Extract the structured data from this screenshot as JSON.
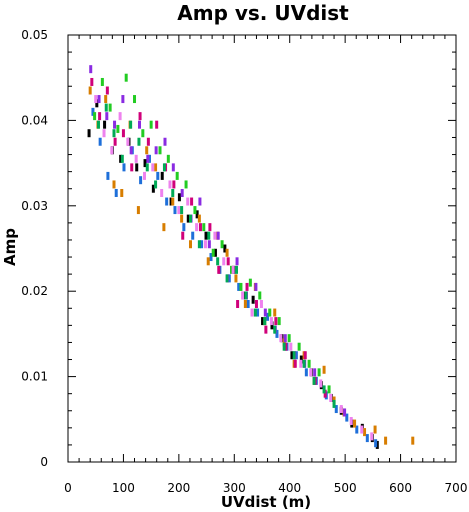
{
  "chart_data": {
    "type": "scatter",
    "title": "Amp vs. UVdist",
    "xlabel": "UVdist (m)",
    "ylabel": "Amp",
    "xlim": [
      0,
      700
    ],
    "ylim": [
      0,
      0.05
    ],
    "x_ticks": [
      "0",
      "100",
      "200",
      "300",
      "400",
      "500",
      "600",
      "700"
    ],
    "y_ticks": [
      "0",
      "0.01",
      "0.02",
      "0.03",
      "0.04",
      "0.05"
    ],
    "grid": false,
    "legend": "none",
    "marker": "small vertical bar",
    "colors": [
      "#000000",
      "#1e6fd9",
      "#d77d00",
      "#22cc22",
      "#d0007a",
      "#8a2be2",
      "#ee82ee",
      "#00aa55",
      "#ff3333",
      "#ffcc00"
    ],
    "series": [
      {
        "color": "#000000",
        "x": [
          38,
          52,
          66,
          80,
          95,
          110,
          124,
          139,
          154,
          170,
          186,
          201,
          217,
          233,
          249,
          266,
          283,
          299,
          316,
          334,
          351,
          368,
          386,
          404,
          421,
          439,
          457,
          475,
          493,
          512,
          531,
          549,
          558
        ],
        "y": [
          0.0385,
          0.042,
          0.0395,
          0.0365,
          0.0355,
          0.0375,
          0.0345,
          0.035,
          0.032,
          0.0335,
          0.0305,
          0.031,
          0.0285,
          0.029,
          0.0265,
          0.0245,
          0.025,
          0.0225,
          0.0195,
          0.019,
          0.0165,
          0.016,
          0.0145,
          0.0125,
          0.012,
          0.0105,
          0.009,
          0.0075,
          0.006,
          0.0045,
          0.004,
          0.0028,
          0.002
        ]
      },
      {
        "color": "#1e6fd9",
        "x": [
          45,
          58,
          72,
          87,
          101,
          116,
          131,
          147,
          162,
          178,
          193,
          209,
          225,
          241,
          258,
          274,
          291,
          308,
          325,
          342,
          360,
          377,
          395,
          412,
          430,
          448,
          466,
          484,
          503,
          521,
          540,
          555
        ],
        "y": [
          0.041,
          0.0375,
          0.0335,
          0.0315,
          0.0345,
          0.0365,
          0.033,
          0.0355,
          0.0335,
          0.0305,
          0.0295,
          0.0275,
          0.0265,
          0.0255,
          0.024,
          0.0225,
          0.0215,
          0.0205,
          0.0185,
          0.0175,
          0.017,
          0.015,
          0.0135,
          0.0125,
          0.0105,
          0.0095,
          0.0078,
          0.0062,
          0.0052,
          0.0038,
          0.0028,
          0.0022
        ]
      },
      {
        "color": "#d77d00",
        "x": [
          40,
          54,
          68,
          83,
          97,
          112,
          127,
          142,
          158,
          173,
          189,
          205,
          221,
          237,
          253,
          270,
          287,
          303,
          320,
          338,
          355,
          373,
          390,
          408,
          426,
          444,
          462,
          480,
          498,
          517,
          535,
          554,
          573,
          622
        ],
        "y": [
          0.0435,
          0.0395,
          0.0425,
          0.0325,
          0.0315,
          0.0395,
          0.0295,
          0.0365,
          0.0345,
          0.0275,
          0.0305,
          0.0285,
          0.0255,
          0.0285,
          0.0235,
          0.0265,
          0.0245,
          0.0215,
          0.0185,
          0.0205,
          0.0165,
          0.0175,
          0.014,
          0.0115,
          0.0125,
          0.0095,
          0.0108,
          0.0072,
          0.0058,
          0.0045,
          0.0035,
          0.0038,
          0.0025,
          0.0025
        ]
      },
      {
        "color": "#22cc22",
        "x": [
          48,
          62,
          76,
          90,
          105,
          120,
          135,
          150,
          166,
          181,
          197,
          213,
          229,
          245,
          262,
          278,
          295,
          312,
          329,
          346,
          364,
          381,
          399,
          417,
          435,
          453,
          471
        ],
        "y": [
          0.0405,
          0.0445,
          0.0415,
          0.039,
          0.045,
          0.0425,
          0.0385,
          0.0395,
          0.0365,
          0.0355,
          0.0335,
          0.0325,
          0.0295,
          0.0275,
          0.0245,
          0.0255,
          0.0225,
          0.0205,
          0.021,
          0.0195,
          0.0175,
          0.0165,
          0.0145,
          0.0135,
          0.0115,
          0.0105,
          0.0085
        ]
      },
      {
        "color": "#d0007a",
        "x": [
          43,
          57,
          71,
          85,
          100,
          115,
          130,
          145,
          160,
          176,
          191,
          207,
          223,
          239,
          256,
          272,
          289,
          306,
          323,
          340,
          357,
          375,
          393,
          410,
          428,
          446,
          464
        ],
        "y": [
          0.0445,
          0.0405,
          0.0435,
          0.0375,
          0.0385,
          0.0345,
          0.0405,
          0.0375,
          0.0395,
          0.0345,
          0.0325,
          0.0265,
          0.0305,
          0.0275,
          0.0275,
          0.0225,
          0.0235,
          0.0185,
          0.0205,
          0.0185,
          0.0155,
          0.0165,
          0.0135,
          0.0115,
          0.0125,
          0.0095,
          0.008
        ]
      },
      {
        "color": "#8a2be2",
        "x": [
          41,
          56,
          70,
          84,
          99,
          114,
          129,
          144,
          159,
          175,
          190,
          206,
          222,
          238,
          255,
          271,
          288,
          305,
          322,
          339,
          356,
          374,
          392,
          409,
          427,
          445,
          499
        ],
        "y": [
          0.046,
          0.0425,
          0.0405,
          0.0395,
          0.0425,
          0.0365,
          0.0395,
          0.0355,
          0.0365,
          0.0375,
          0.0345,
          0.0315,
          0.0285,
          0.0305,
          0.0255,
          0.0265,
          0.0215,
          0.0235,
          0.0195,
          0.0205,
          0.0175,
          0.0155,
          0.0145,
          0.0125,
          0.0115,
          0.0105,
          0.0058
        ]
      },
      {
        "color": "#ee82ee",
        "x": [
          50,
          65,
          79,
          94,
          108,
          123,
          138,
          153,
          169,
          184,
          200,
          216,
          232,
          248,
          265,
          281,
          298,
          315,
          332,
          349,
          367,
          384,
          402,
          420,
          438,
          456,
          474,
          493,
          511,
          530,
          548
        ],
        "y": [
          0.0425,
          0.0385,
          0.0365,
          0.0405,
          0.0375,
          0.0355,
          0.0335,
          0.0345,
          0.0315,
          0.0325,
          0.0295,
          0.0305,
          0.0275,
          0.0255,
          0.0265,
          0.0235,
          0.0225,
          0.0195,
          0.0175,
          0.0185,
          0.0165,
          0.0145,
          0.0135,
          0.0115,
          0.0105,
          0.0092,
          0.0075,
          0.0062,
          0.0048,
          0.0038,
          0.003
        ]
      },
      {
        "color": "#00aa55",
        "x": [
          55,
          69,
          83,
          98,
          113,
          128,
          143,
          158,
          174,
          189,
          205,
          221,
          237,
          254,
          270,
          287,
          304,
          321,
          338,
          355,
          373,
          390,
          408,
          426,
          444,
          462,
          480
        ],
        "y": [
          0.0395,
          0.0415,
          0.0385,
          0.0355,
          0.0395,
          0.0375,
          0.0345,
          0.0325,
          0.0345,
          0.0315,
          0.0295,
          0.0285,
          0.0255,
          0.0265,
          0.0235,
          0.0215,
          0.0225,
          0.0195,
          0.0175,
          0.0165,
          0.0155,
          0.0135,
          0.0125,
          0.0115,
          0.0095,
          0.0085,
          0.0068
        ]
      }
    ]
  }
}
